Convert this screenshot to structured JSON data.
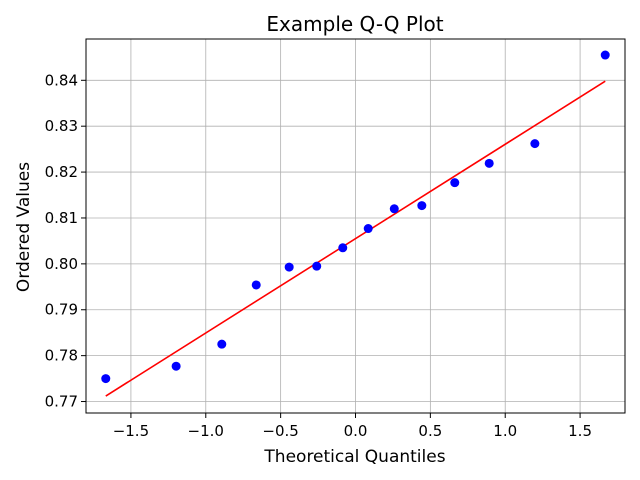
{
  "chart_data": {
    "type": "scatter",
    "title": "Example Q-Q Plot",
    "xlabel": "Theoretical Quantiles",
    "ylabel": "Ordered Values",
    "xlim": [
      -1.8,
      1.8
    ],
    "ylim": [
      0.7675,
      0.849
    ],
    "grid": true,
    "x_ticks": [
      -1.5,
      -1.0,
      -0.5,
      0.0,
      0.5,
      1.0,
      1.5
    ],
    "x_tick_labels": [
      "−1.5",
      "−1.0",
      "−0.5",
      "0.0",
      "0.5",
      "1.0",
      "1.5"
    ],
    "y_ticks": [
      0.77,
      0.78,
      0.79,
      0.8,
      0.81,
      0.82,
      0.83,
      0.84
    ],
    "y_tick_labels": [
      "0.77",
      "0.78",
      "0.79",
      "0.80",
      "0.81",
      "0.82",
      "0.83",
      "0.84"
    ],
    "series": [
      {
        "kind": "points",
        "color": "#0000ff",
        "x": [
          -1.668,
          -1.198,
          -0.893,
          -0.663,
          -0.443,
          -0.259,
          -0.085,
          0.085,
          0.259,
          0.443,
          0.663,
          0.893,
          1.198,
          1.668
        ],
        "y": [
          0.775,
          0.7777,
          0.7825,
          0.7954,
          0.7993,
          0.7995,
          0.8035,
          0.8077,
          0.812,
          0.8127,
          0.8177,
          0.8219,
          0.8262,
          0.8455
        ]
      },
      {
        "kind": "line",
        "color": "#ff0000",
        "x": [
          -1.668,
          1.668
        ],
        "y": [
          0.7712,
          0.8398
        ]
      }
    ]
  }
}
